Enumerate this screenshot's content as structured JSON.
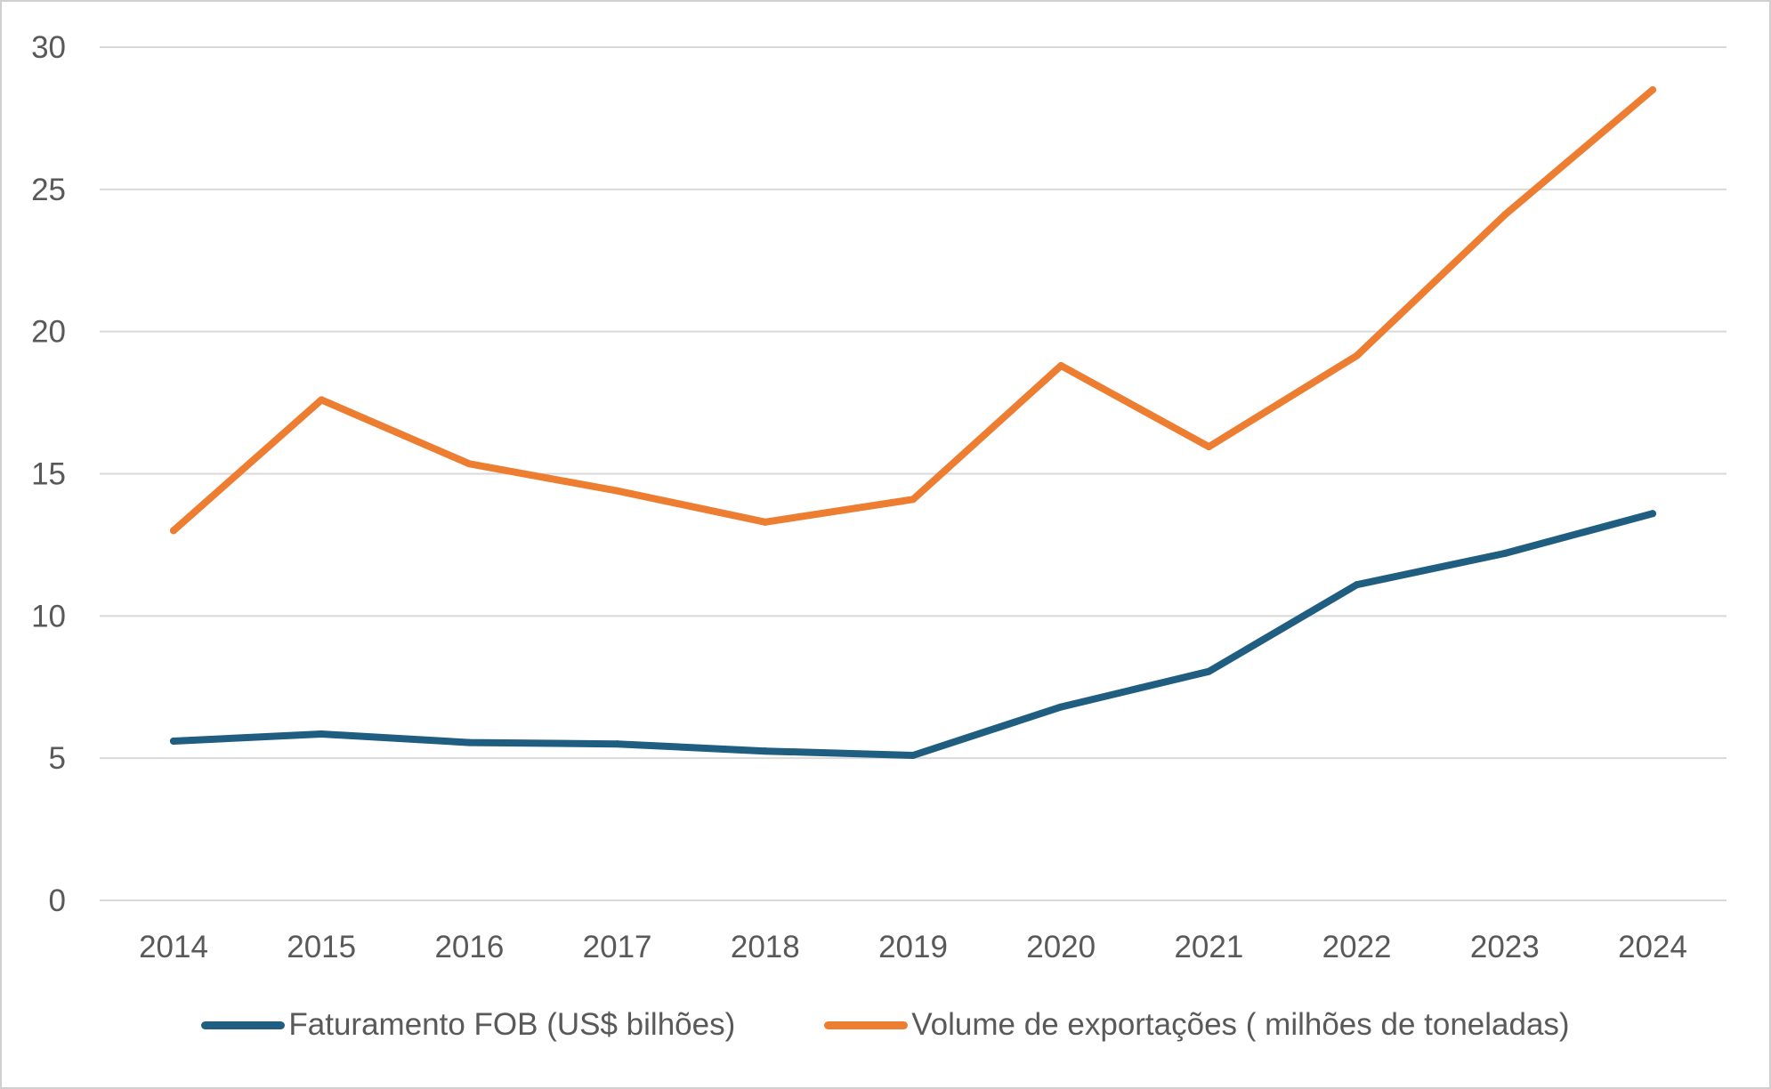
{
  "chart_data": {
    "type": "line",
    "title": "",
    "xlabel": "",
    "ylabel": "",
    "categories": [
      "2014",
      "2015",
      "2016",
      "2017",
      "2018",
      "2019",
      "2020",
      "2021",
      "2022",
      "2023",
      "2024"
    ],
    "ylim": [
      0,
      30
    ],
    "yticks": [
      "0",
      "5",
      "10",
      "15",
      "20",
      "25",
      "30"
    ],
    "grid": true,
    "legend_position": "bottom",
    "series": [
      {
        "name": "Faturamento FOB (US$ bilhões)",
        "color": "#1f5e80",
        "values": [
          5.6,
          5.85,
          5.55,
          5.5,
          5.25,
          5.1,
          6.8,
          8.05,
          11.1,
          12.2,
          13.6
        ]
      },
      {
        "name": "Volume de exportações ( milhões de toneladas)",
        "color": "#ed7d31",
        "values": [
          13.0,
          17.6,
          15.35,
          14.4,
          13.3,
          14.1,
          18.8,
          15.95,
          19.15,
          24.1,
          28.5
        ]
      }
    ]
  }
}
